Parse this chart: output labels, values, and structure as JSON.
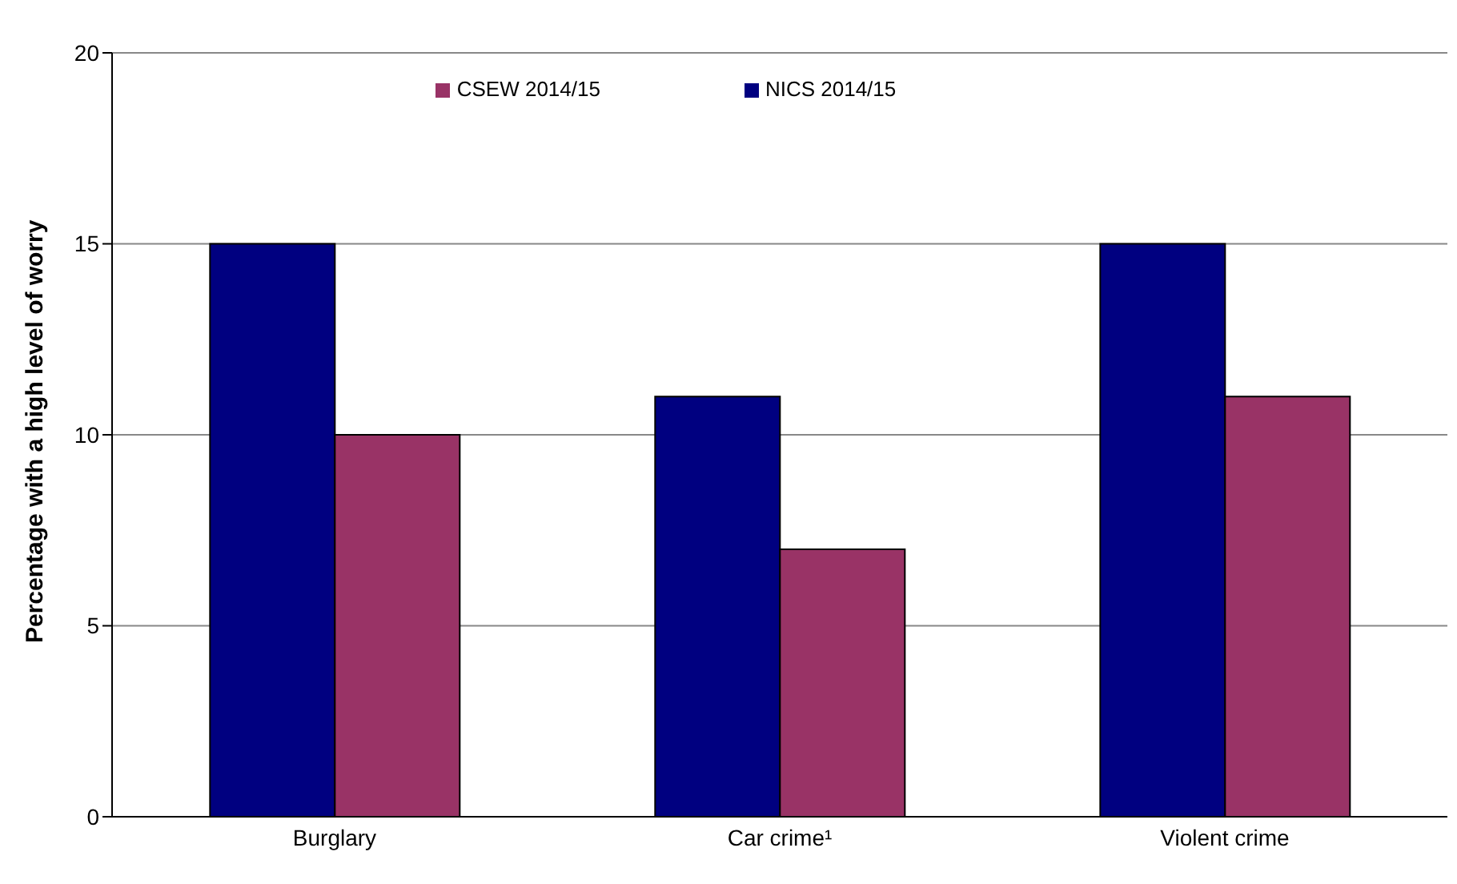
{
  "chart_data": {
    "type": "bar",
    "ylabel": "Percentage with a high level of worry",
    "categories": [
      "Burglary",
      "Car crime¹",
      "Violent crime"
    ],
    "series": [
      {
        "name": "NICS 2014/15",
        "color": "#000080",
        "values": [
          15,
          11,
          15
        ]
      },
      {
        "name": "CSEW 2014/15",
        "color": "#993366",
        "values": [
          10,
          7,
          11
        ]
      }
    ],
    "ylim": [
      0,
      20
    ],
    "yticks": [
      0,
      5,
      10,
      15,
      20
    ],
    "grid": "y",
    "legend": "top"
  }
}
